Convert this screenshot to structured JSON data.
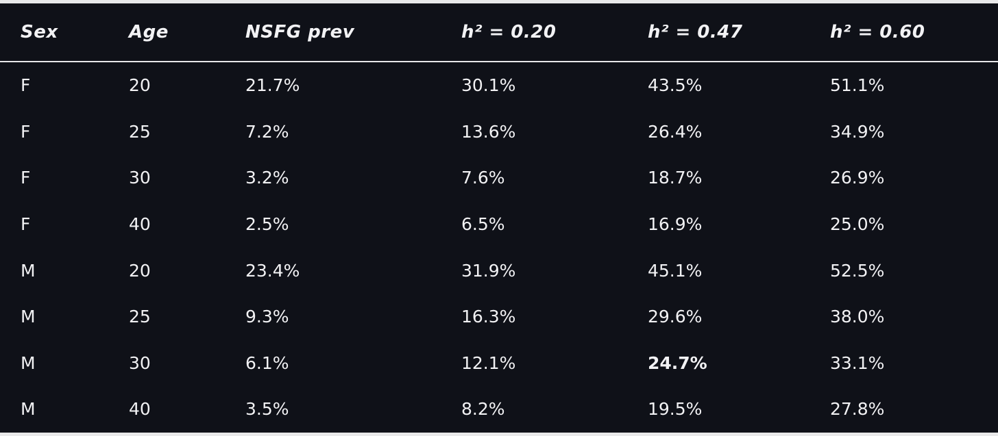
{
  "table": {
    "header": [
      "Sex",
      "Age",
      "NSFG prev",
      "h² = 0.20",
      "h² = 0.47",
      "h² = 0.60"
    ],
    "rows": [
      [
        "F",
        "20",
        "21.7%",
        "30.1%",
        "43.5%",
        "51.1%"
      ],
      [
        "F",
        "25",
        "7.2%",
        "13.6%",
        "26.4%",
        "34.9%"
      ],
      [
        "F",
        "30",
        "3.2%",
        "7.6%",
        "18.7%",
        "26.9%"
      ],
      [
        "F",
        "40",
        "2.5%",
        "6.5%",
        "16.9%",
        "25.0%"
      ],
      [
        "M",
        "20",
        "23.4%",
        "31.9%",
        "45.1%",
        "52.5%"
      ],
      [
        "M",
        "25",
        "9.3%",
        "16.3%",
        "29.6%",
        "38.0%"
      ],
      [
        "M",
        "30",
        "6.1%",
        "12.1%",
        "24.7%",
        "33.1%"
      ],
      [
        "M",
        "40",
        "3.5%",
        "8.2%",
        "19.5%",
        "27.8%"
      ]
    ]
  }
}
